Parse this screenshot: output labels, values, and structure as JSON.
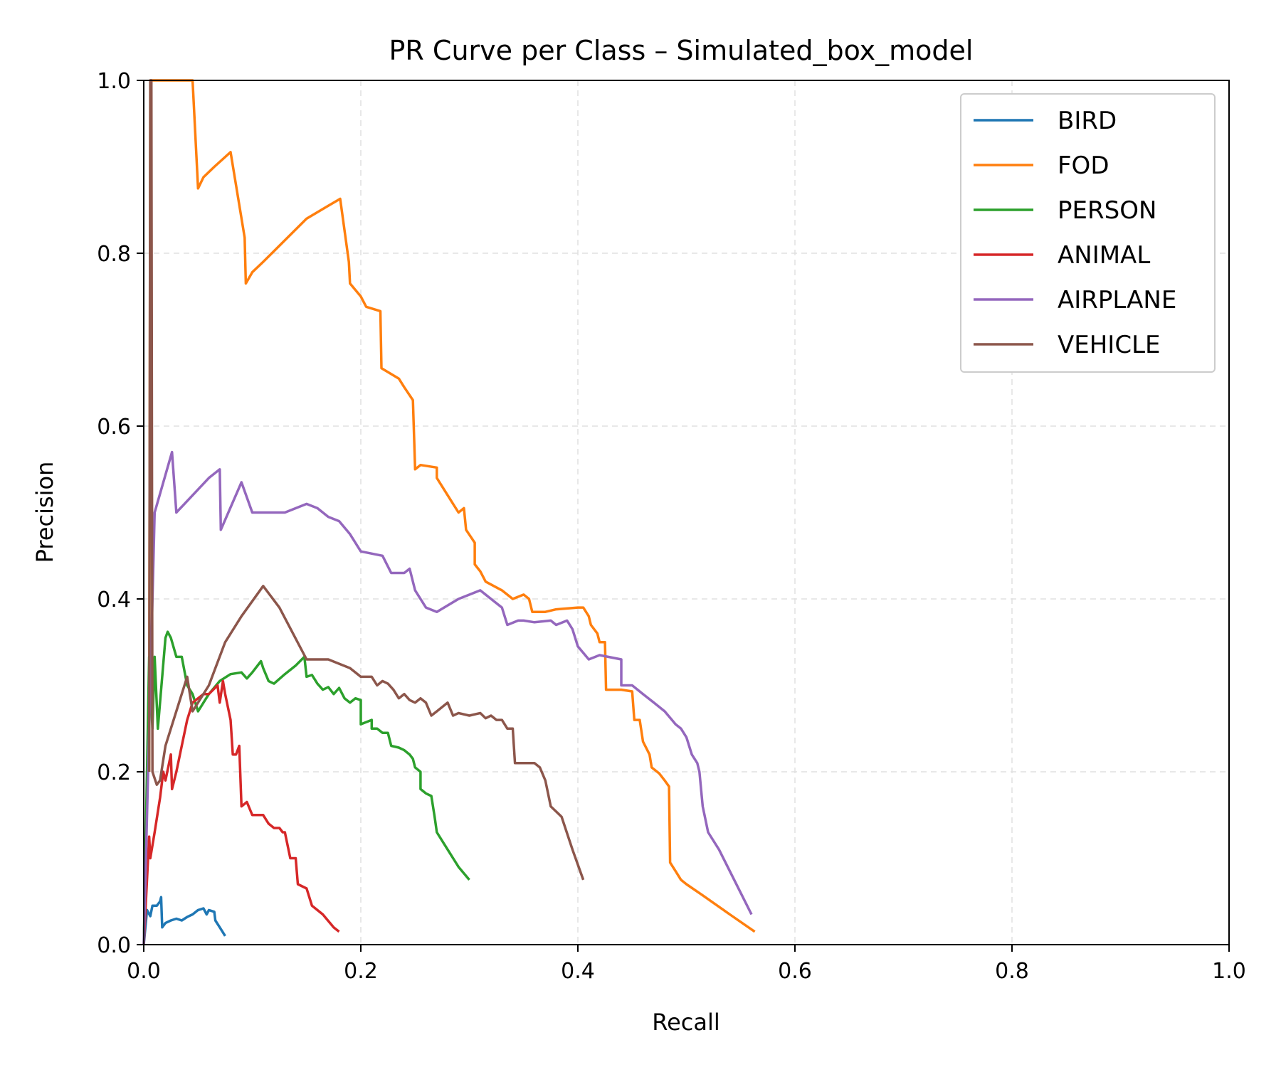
{
  "chart_data": {
    "type": "line",
    "title": "PR Curve per Class – Simulated_box_model",
    "xlabel": "Recall",
    "ylabel": "Precision",
    "xlim": [
      0,
      1
    ],
    "ylim": [
      0,
      1
    ],
    "x_ticks": [
      "0.0",
      "0.2",
      "0.4",
      "0.6",
      "0.8",
      "1.0"
    ],
    "y_ticks": [
      "0.0",
      "0.2",
      "0.4",
      "0.6",
      "0.8",
      "1.0"
    ],
    "grid": true,
    "legend_position": "top-right",
    "series": [
      {
        "name": "BIRD",
        "color": "#1f77b4",
        "points": [
          [
            0.0,
            0.0
          ],
          [
            0.003,
            0.04
          ],
          [
            0.006,
            0.033
          ],
          [
            0.008,
            0.045
          ],
          [
            0.012,
            0.045
          ],
          [
            0.015,
            0.05
          ],
          [
            0.016,
            0.055
          ],
          [
            0.017,
            0.02
          ],
          [
            0.02,
            0.025
          ],
          [
            0.025,
            0.028
          ],
          [
            0.03,
            0.03
          ],
          [
            0.035,
            0.028
          ],
          [
            0.04,
            0.032
          ],
          [
            0.045,
            0.035
          ],
          [
            0.05,
            0.04
          ],
          [
            0.055,
            0.042
          ],
          [
            0.058,
            0.035
          ],
          [
            0.06,
            0.04
          ],
          [
            0.065,
            0.038
          ],
          [
            0.066,
            0.028
          ],
          [
            0.07,
            0.02
          ],
          [
            0.075,
            0.01
          ]
        ]
      },
      {
        "name": "FOD",
        "color": "#ff7f0e",
        "points": [
          [
            0.005,
            0.2
          ],
          [
            0.006,
            1.0
          ],
          [
            0.04,
            1.0
          ],
          [
            0.045,
            1.0
          ],
          [
            0.05,
            0.875
          ],
          [
            0.055,
            0.888
          ],
          [
            0.065,
            0.9
          ],
          [
            0.08,
            0.917
          ],
          [
            0.093,
            0.818
          ],
          [
            0.094,
            0.765
          ],
          [
            0.1,
            0.778
          ],
          [
            0.11,
            0.79
          ],
          [
            0.13,
            0.815
          ],
          [
            0.15,
            0.84
          ],
          [
            0.17,
            0.855
          ],
          [
            0.181,
            0.863
          ],
          [
            0.189,
            0.79
          ],
          [
            0.19,
            0.765
          ],
          [
            0.2,
            0.75
          ],
          [
            0.205,
            0.738
          ],
          [
            0.218,
            0.733
          ],
          [
            0.219,
            0.667
          ],
          [
            0.235,
            0.655
          ],
          [
            0.24,
            0.645
          ],
          [
            0.248,
            0.63
          ],
          [
            0.25,
            0.55
          ],
          [
            0.255,
            0.555
          ],
          [
            0.27,
            0.552
          ],
          [
            0.27,
            0.54
          ],
          [
            0.28,
            0.52
          ],
          [
            0.29,
            0.5
          ],
          [
            0.295,
            0.505
          ],
          [
            0.297,
            0.48
          ],
          [
            0.305,
            0.465
          ],
          [
            0.305,
            0.44
          ],
          [
            0.31,
            0.432
          ],
          [
            0.315,
            0.42
          ],
          [
            0.33,
            0.41
          ],
          [
            0.34,
            0.4
          ],
          [
            0.35,
            0.405
          ],
          [
            0.355,
            0.4
          ],
          [
            0.358,
            0.385
          ],
          [
            0.37,
            0.385
          ],
          [
            0.38,
            0.388
          ],
          [
            0.4,
            0.39
          ],
          [
            0.405,
            0.39
          ],
          [
            0.41,
            0.38
          ],
          [
            0.412,
            0.37
          ],
          [
            0.418,
            0.36
          ],
          [
            0.42,
            0.35
          ],
          [
            0.425,
            0.35
          ],
          [
            0.426,
            0.295
          ],
          [
            0.44,
            0.295
          ],
          [
            0.45,
            0.293
          ],
          [
            0.452,
            0.26
          ],
          [
            0.457,
            0.26
          ],
          [
            0.46,
            0.235
          ],
          [
            0.466,
            0.22
          ],
          [
            0.468,
            0.205
          ],
          [
            0.475,
            0.198
          ],
          [
            0.48,
            0.19
          ],
          [
            0.484,
            0.183
          ],
          [
            0.485,
            0.095
          ],
          [
            0.49,
            0.085
          ],
          [
            0.495,
            0.075
          ],
          [
            0.5,
            0.07
          ],
          [
            0.515,
            0.057
          ],
          [
            0.54,
            0.035
          ],
          [
            0.563,
            0.015
          ]
        ]
      },
      {
        "name": "PERSON",
        "color": "#2ca02c",
        "points": [
          [
            0.0,
            0.0
          ],
          [
            0.005,
            0.333
          ],
          [
            0.008,
            0.25
          ],
          [
            0.01,
            0.333
          ],
          [
            0.013,
            0.25
          ],
          [
            0.02,
            0.355
          ],
          [
            0.022,
            0.362
          ],
          [
            0.025,
            0.355
          ],
          [
            0.03,
            0.333
          ],
          [
            0.035,
            0.333
          ],
          [
            0.04,
            0.3
          ],
          [
            0.045,
            0.29
          ],
          [
            0.05,
            0.27
          ],
          [
            0.055,
            0.28
          ],
          [
            0.06,
            0.29
          ],
          [
            0.07,
            0.305
          ],
          [
            0.08,
            0.313
          ],
          [
            0.09,
            0.315
          ],
          [
            0.095,
            0.308
          ],
          [
            0.1,
            0.315
          ],
          [
            0.108,
            0.328
          ],
          [
            0.11,
            0.32
          ],
          [
            0.115,
            0.305
          ],
          [
            0.12,
            0.302
          ],
          [
            0.13,
            0.313
          ],
          [
            0.14,
            0.323
          ],
          [
            0.148,
            0.333
          ],
          [
            0.15,
            0.31
          ],
          [
            0.155,
            0.312
          ],
          [
            0.16,
            0.302
          ],
          [
            0.165,
            0.295
          ],
          [
            0.17,
            0.298
          ],
          [
            0.175,
            0.29
          ],
          [
            0.18,
            0.297
          ],
          [
            0.185,
            0.285
          ],
          [
            0.19,
            0.28
          ],
          [
            0.195,
            0.285
          ],
          [
            0.2,
            0.283
          ],
          [
            0.2,
            0.255
          ],
          [
            0.21,
            0.26
          ],
          [
            0.21,
            0.25
          ],
          [
            0.215,
            0.25
          ],
          [
            0.22,
            0.245
          ],
          [
            0.225,
            0.245
          ],
          [
            0.228,
            0.23
          ],
          [
            0.235,
            0.228
          ],
          [
            0.24,
            0.225
          ],
          [
            0.245,
            0.22
          ],
          [
            0.248,
            0.215
          ],
          [
            0.25,
            0.205
          ],
          [
            0.255,
            0.2
          ],
          [
            0.255,
            0.18
          ],
          [
            0.26,
            0.175
          ],
          [
            0.265,
            0.172
          ],
          [
            0.268,
            0.148
          ],
          [
            0.27,
            0.13
          ],
          [
            0.28,
            0.11
          ],
          [
            0.29,
            0.09
          ],
          [
            0.3,
            0.075
          ]
        ]
      },
      {
        "name": "ANIMAL",
        "color": "#d62728",
        "points": [
          [
            0.0,
            0.0
          ],
          [
            0.005,
            0.125
          ],
          [
            0.006,
            0.1
          ],
          [
            0.01,
            0.13
          ],
          [
            0.015,
            0.17
          ],
          [
            0.018,
            0.2
          ],
          [
            0.02,
            0.19
          ],
          [
            0.025,
            0.22
          ],
          [
            0.026,
            0.18
          ],
          [
            0.03,
            0.2
          ],
          [
            0.035,
            0.23
          ],
          [
            0.04,
            0.26
          ],
          [
            0.045,
            0.28
          ],
          [
            0.05,
            0.285
          ],
          [
            0.055,
            0.29
          ],
          [
            0.06,
            0.29
          ],
          [
            0.068,
            0.3
          ],
          [
            0.07,
            0.28
          ],
          [
            0.073,
            0.305
          ],
          [
            0.075,
            0.29
          ],
          [
            0.08,
            0.26
          ],
          [
            0.082,
            0.22
          ],
          [
            0.085,
            0.22
          ],
          [
            0.088,
            0.23
          ],
          [
            0.09,
            0.16
          ],
          [
            0.095,
            0.165
          ],
          [
            0.1,
            0.15
          ],
          [
            0.105,
            0.15
          ],
          [
            0.11,
            0.15
          ],
          [
            0.115,
            0.14
          ],
          [
            0.12,
            0.135
          ],
          [
            0.125,
            0.135
          ],
          [
            0.128,
            0.13
          ],
          [
            0.13,
            0.13
          ],
          [
            0.135,
            0.1
          ],
          [
            0.14,
            0.1
          ],
          [
            0.142,
            0.07
          ],
          [
            0.15,
            0.065
          ],
          [
            0.155,
            0.045
          ],
          [
            0.165,
            0.035
          ],
          [
            0.175,
            0.02
          ],
          [
            0.18,
            0.015
          ]
        ]
      },
      {
        "name": "AIRPLANE",
        "color": "#9467bd",
        "points": [
          [
            0.0,
            0.0
          ],
          [
            0.01,
            0.5
          ],
          [
            0.026,
            0.57
          ],
          [
            0.03,
            0.5
          ],
          [
            0.06,
            0.54
          ],
          [
            0.07,
            0.55
          ],
          [
            0.071,
            0.48
          ],
          [
            0.09,
            0.535
          ],
          [
            0.1,
            0.5
          ],
          [
            0.11,
            0.5
          ],
          [
            0.13,
            0.5
          ],
          [
            0.15,
            0.51
          ],
          [
            0.16,
            0.505
          ],
          [
            0.17,
            0.495
          ],
          [
            0.18,
            0.49
          ],
          [
            0.19,
            0.475
          ],
          [
            0.2,
            0.455
          ],
          [
            0.22,
            0.45
          ],
          [
            0.228,
            0.43
          ],
          [
            0.24,
            0.43
          ],
          [
            0.245,
            0.435
          ],
          [
            0.25,
            0.41
          ],
          [
            0.26,
            0.39
          ],
          [
            0.27,
            0.385
          ],
          [
            0.29,
            0.4
          ],
          [
            0.31,
            0.41
          ],
          [
            0.32,
            0.4
          ],
          [
            0.33,
            0.39
          ],
          [
            0.335,
            0.37
          ],
          [
            0.345,
            0.375
          ],
          [
            0.35,
            0.375
          ],
          [
            0.36,
            0.373
          ],
          [
            0.375,
            0.375
          ],
          [
            0.38,
            0.37
          ],
          [
            0.39,
            0.375
          ],
          [
            0.395,
            0.365
          ],
          [
            0.4,
            0.345
          ],
          [
            0.41,
            0.33
          ],
          [
            0.42,
            0.335
          ],
          [
            0.44,
            0.33
          ],
          [
            0.44,
            0.3
          ],
          [
            0.45,
            0.3
          ],
          [
            0.46,
            0.29
          ],
          [
            0.47,
            0.28
          ],
          [
            0.48,
            0.27
          ],
          [
            0.49,
            0.255
          ],
          [
            0.495,
            0.25
          ],
          [
            0.5,
            0.24
          ],
          [
            0.505,
            0.22
          ],
          [
            0.51,
            0.21
          ],
          [
            0.512,
            0.2
          ],
          [
            0.515,
            0.16
          ],
          [
            0.52,
            0.13
          ],
          [
            0.53,
            0.11
          ],
          [
            0.56,
            0.035
          ]
        ]
      },
      {
        "name": "VEHICLE",
        "color": "#8c564b",
        "points": [
          [
            0.005,
            0.2
          ],
          [
            0.006,
            1.0
          ],
          [
            0.007,
            1.0
          ],
          [
            0.008,
            0.2
          ],
          [
            0.012,
            0.185
          ],
          [
            0.015,
            0.19
          ],
          [
            0.02,
            0.23
          ],
          [
            0.04,
            0.31
          ],
          [
            0.045,
            0.27
          ],
          [
            0.06,
            0.3
          ],
          [
            0.075,
            0.35
          ],
          [
            0.09,
            0.38
          ],
          [
            0.11,
            0.415
          ],
          [
            0.125,
            0.39
          ],
          [
            0.15,
            0.33
          ],
          [
            0.16,
            0.33
          ],
          [
            0.17,
            0.33
          ],
          [
            0.18,
            0.325
          ],
          [
            0.19,
            0.32
          ],
          [
            0.2,
            0.31
          ],
          [
            0.21,
            0.31
          ],
          [
            0.215,
            0.3
          ],
          [
            0.22,
            0.305
          ],
          [
            0.225,
            0.302
          ],
          [
            0.23,
            0.295
          ],
          [
            0.235,
            0.285
          ],
          [
            0.24,
            0.29
          ],
          [
            0.245,
            0.283
          ],
          [
            0.25,
            0.28
          ],
          [
            0.255,
            0.285
          ],
          [
            0.26,
            0.28
          ],
          [
            0.265,
            0.265
          ],
          [
            0.27,
            0.27
          ],
          [
            0.28,
            0.28
          ],
          [
            0.285,
            0.265
          ],
          [
            0.29,
            0.268
          ],
          [
            0.3,
            0.265
          ],
          [
            0.31,
            0.268
          ],
          [
            0.315,
            0.262
          ],
          [
            0.32,
            0.265
          ],
          [
            0.325,
            0.26
          ],
          [
            0.33,
            0.26
          ],
          [
            0.335,
            0.25
          ],
          [
            0.34,
            0.25
          ],
          [
            0.342,
            0.21
          ],
          [
            0.355,
            0.21
          ],
          [
            0.36,
            0.21
          ],
          [
            0.365,
            0.205
          ],
          [
            0.37,
            0.19
          ],
          [
            0.375,
            0.16
          ],
          [
            0.385,
            0.148
          ],
          [
            0.395,
            0.11
          ],
          [
            0.405,
            0.075
          ]
        ]
      }
    ]
  }
}
